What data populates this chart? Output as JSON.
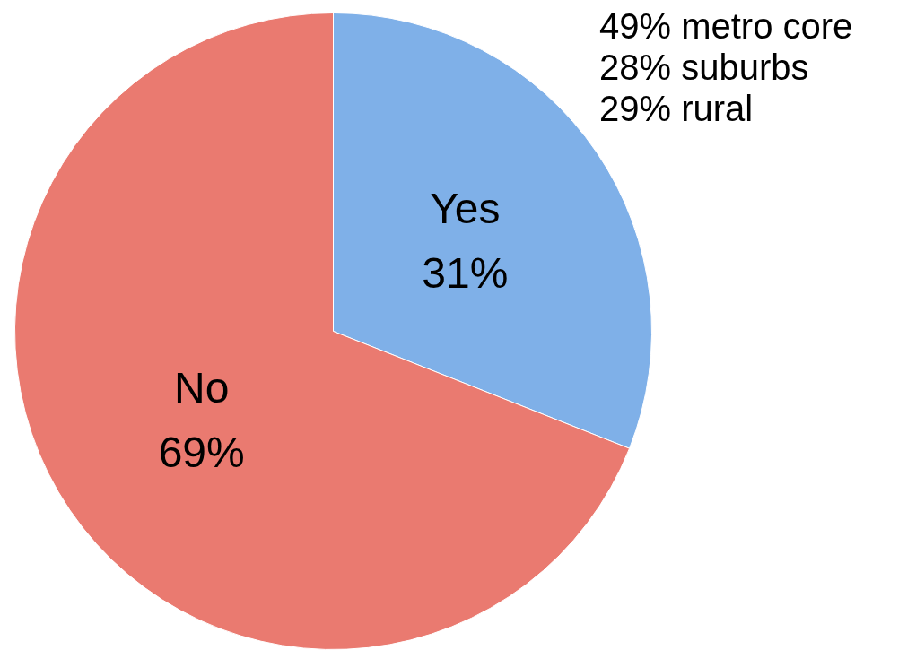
{
  "chart_data": {
    "type": "pie",
    "categories": [
      "Yes",
      "No"
    ],
    "values": [
      31,
      69
    ],
    "colors": [
      "#7fb0e8",
      "#ea7a70"
    ],
    "value_labels": [
      "31%",
      "69%"
    ],
    "legend": false,
    "annotations": [
      "49% metro core",
      "28% suburbs",
      "29% rural"
    ]
  }
}
